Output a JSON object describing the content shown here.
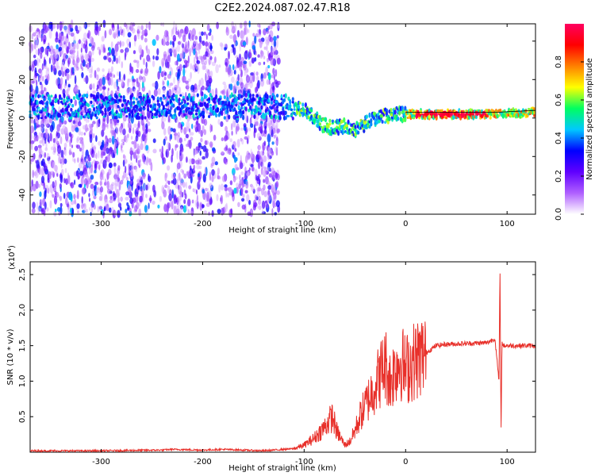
{
  "figure": {
    "title": "C2E2.2024.087.02.47.R18"
  },
  "chart_data": [
    {
      "type": "heatmap",
      "title": "C2E2.2024.087.02.47.R18",
      "xlabel": "Height of straight line (km)",
      "ylabel": "Frequency (Hz)",
      "xlim": [
        -370,
        128
      ],
      "ylim": [
        -50,
        49
      ],
      "x_ticks": [
        -300,
        -200,
        -100,
        0,
        100
      ],
      "y_ticks": [
        -40,
        -20,
        0,
        20,
        40
      ],
      "grid": false,
      "colorbar": {
        "label": "Normalized spectral amplitude",
        "range": [
          0.0,
          1.0
        ],
        "ticks": [
          0.0,
          0.2,
          0.4,
          0.6,
          0.8
        ],
        "colormap": [
          "#ffffff",
          "#b060ff",
          "#6000ff",
          "#0000ff",
          "#00c8ff",
          "#00ff60",
          "#ffff00",
          "#ff8000",
          "#ff0000",
          "#ff0060"
        ]
      },
      "ridge": {
        "x": [
          -140,
          -120,
          -100,
          -90,
          -80,
          -70,
          -60,
          -50,
          -40,
          -30,
          -20,
          -10,
          0,
          10,
          30,
          60,
          90,
          128
        ],
        "freq": [
          6,
          6,
          4,
          0,
          -4,
          -5,
          -4,
          -6,
          -3,
          0,
          1,
          2,
          2,
          2,
          2,
          2,
          2,
          3
        ]
      }
    },
    {
      "type": "line",
      "xlabel": "Height of straight line (km)",
      "ylabel": "SNR (10 * v/v)",
      "y_multiplier": "(x10",
      "y_multiplier_exp": "4",
      "y_multiplier_close": ")",
      "xlim": [
        -370,
        128
      ],
      "ylim": [
        0,
        2.68
      ],
      "x_ticks": [
        -300,
        -200,
        -100,
        0,
        100
      ],
      "y_ticks": [
        0.5,
        1.0,
        1.5,
        2.0,
        2.5
      ],
      "grid": false,
      "series": [
        {
          "color": "#e8302a",
          "x": [
            -370,
            -300,
            -240,
            -230,
            -200,
            -180,
            -140,
            -110,
            -100,
            -90,
            -80,
            -75,
            -72,
            -68,
            -60,
            -55,
            -50,
            -45,
            -40,
            -35,
            -30,
            -25,
            -20,
            -15,
            -10,
            -5,
            0,
            5,
            10,
            20,
            30,
            40,
            60,
            80,
            88,
            92,
            93,
            94,
            95,
            96,
            100,
            110,
            128
          ],
          "y": [
            0.02,
            0.02,
            0.03,
            0.04,
            0.03,
            0.04,
            0.02,
            0.05,
            0.1,
            0.2,
            0.35,
            0.45,
            0.5,
            0.3,
            0.1,
            0.15,
            0.3,
            0.5,
            0.65,
            0.8,
            0.95,
            1.1,
            1.25,
            1.0,
            1.2,
            1.3,
            1.15,
            1.25,
            1.3,
            1.4,
            1.5,
            1.52,
            1.53,
            1.54,
            1.6,
            1.0,
            2.6,
            0.25,
            1.55,
            1.5,
            1.5,
            1.5,
            1.5
          ]
        }
      ]
    }
  ]
}
